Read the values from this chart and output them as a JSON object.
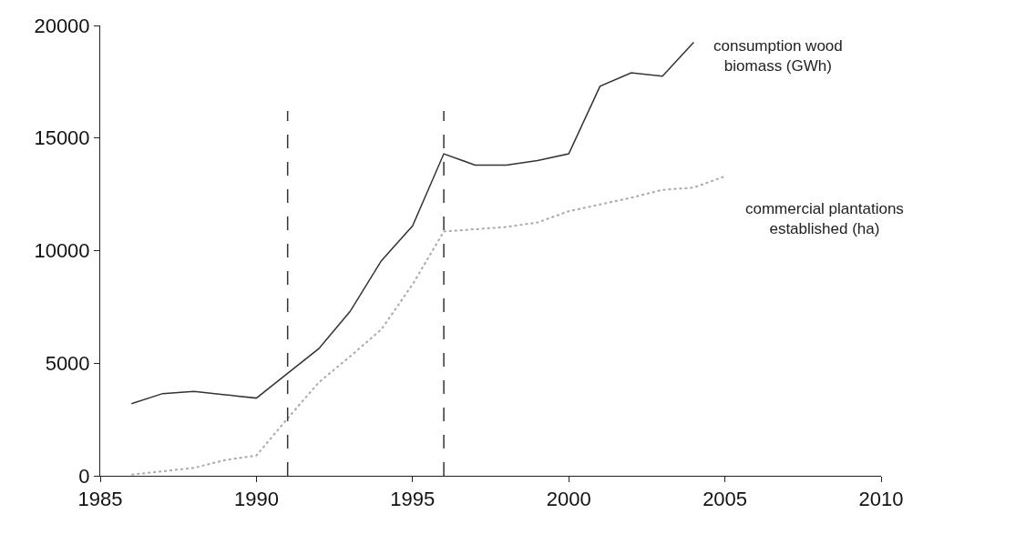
{
  "chart_data": {
    "type": "line",
    "x": [
      1986,
      1987,
      1988,
      1989,
      1990,
      1991,
      1992,
      1993,
      1994,
      1995,
      1996,
      1997,
      1998,
      1999,
      2000,
      2001,
      2002,
      2003,
      2004,
      2005
    ],
    "series": [
      {
        "name": "consumption wood biomass (GWh)",
        "color": "#333333",
        "line_style": "solid",
        "values": [
          3200,
          3650,
          3750,
          3600,
          3450,
          4550,
          5650,
          7300,
          9550,
          11100,
          14300,
          13800,
          13800,
          14000,
          14300,
          17300,
          17900,
          17750,
          19250,
          null
        ]
      },
      {
        "name": "commercial plantations established (ha)",
        "color": "#aaaaaa",
        "line_style": "dotted",
        "values": [
          50,
          200,
          350,
          700,
          900,
          2550,
          4150,
          5300,
          6500,
          8500,
          10850,
          10950,
          11050,
          11250,
          11750,
          12050,
          12350,
          12700,
          12800,
          13300
        ]
      }
    ],
    "xlim": [
      1985,
      2010
    ],
    "xticks": [
      1985,
      1990,
      1995,
      2000,
      2005,
      2010
    ],
    "ylim": [
      0,
      20000
    ],
    "yticks": [
      0,
      5000,
      10000,
      15000,
      20000
    ],
    "ref_lines": [
      {
        "axis": "x",
        "value": 1991,
        "color": "#333333",
        "line_style": "dashed"
      },
      {
        "axis": "x",
        "value": 1996,
        "color": "#333333",
        "line_style": "dashed"
      }
    ],
    "legend": false,
    "marker": "none"
  }
}
